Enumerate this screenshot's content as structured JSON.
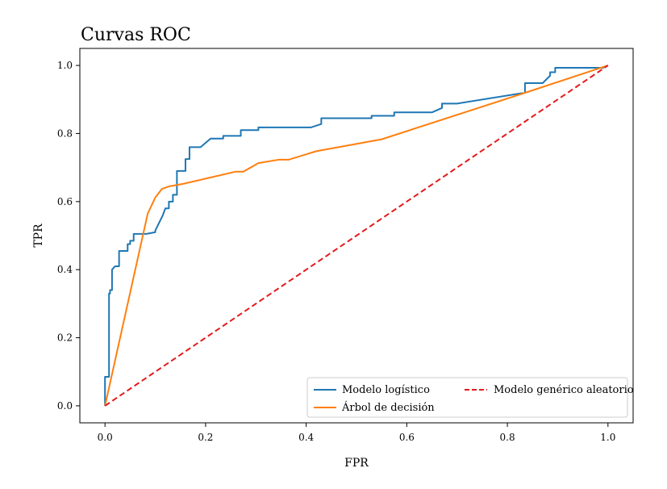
{
  "chart_data": {
    "type": "line",
    "title": "Curvas ROC",
    "xlabel": "FPR",
    "ylabel": "TPR",
    "xlim": [
      -0.05,
      1.05
    ],
    "ylim": [
      -0.05,
      1.05
    ],
    "xticks": [
      "0.0",
      "0.2",
      "0.4",
      "0.6",
      "0.8",
      "1.0"
    ],
    "yticks": [
      "0.0",
      "0.2",
      "0.4",
      "0.6",
      "0.8",
      "1.0"
    ],
    "grid": false,
    "legend_position": "bottom-right",
    "series": [
      {
        "name": "Modelo logístico",
        "color": "#1f77b4",
        "style": "solid",
        "x": [
          0,
          0,
          0.008,
          0.008,
          0.01,
          0.01,
          0.014,
          0.014,
          0.02,
          0.028,
          0.028,
          0.045,
          0.045,
          0.05,
          0.05,
          0.057,
          0.057,
          0.082,
          0.1,
          0.1,
          0.115,
          0.12,
          0.127,
          0.127,
          0.135,
          0.135,
          0.143,
          0.143,
          0.16,
          0.16,
          0.168,
          0.168,
          0.19,
          0.21,
          0.21,
          0.235,
          0.235,
          0.27,
          0.27,
          0.305,
          0.305,
          0.41,
          0.43,
          0.43,
          0.53,
          0.53,
          0.575,
          0.575,
          0.65,
          0.67,
          0.67,
          0.7,
          0.835,
          0.835,
          0.87,
          0.885,
          0.885,
          0.895,
          0.895,
          0.99,
          1.0
        ],
        "y": [
          0,
          0.085,
          0.085,
          0.33,
          0.33,
          0.34,
          0.34,
          0.4,
          0.41,
          0.41,
          0.455,
          0.455,
          0.475,
          0.475,
          0.485,
          0.485,
          0.505,
          0.505,
          0.51,
          0.515,
          0.56,
          0.58,
          0.58,
          0.6,
          0.6,
          0.62,
          0.62,
          0.69,
          0.69,
          0.725,
          0.725,
          0.76,
          0.76,
          0.785,
          0.785,
          0.785,
          0.793,
          0.793,
          0.81,
          0.81,
          0.818,
          0.818,
          0.828,
          0.845,
          0.845,
          0.852,
          0.852,
          0.862,
          0.862,
          0.875,
          0.888,
          0.888,
          0.92,
          0.948,
          0.948,
          0.97,
          0.98,
          0.98,
          0.993,
          0.993,
          1.0
        ]
      },
      {
        "name": "Árbol de decisión",
        "color": "#ff7f0e",
        "style": "solid",
        "x": [
          0,
          0.085,
          0.1,
          0.113,
          0.128,
          0.155,
          0.26,
          0.275,
          0.305,
          0.345,
          0.365,
          0.42,
          0.55,
          0.84,
          1.0
        ],
        "y": [
          0,
          0.565,
          0.612,
          0.637,
          0.645,
          0.652,
          0.688,
          0.688,
          0.713,
          0.723,
          0.723,
          0.748,
          0.783,
          0.922,
          1.0
        ]
      },
      {
        "name": "Modelo genérico aleatorio",
        "color": "#e31a1c",
        "style": "dashed",
        "x": [
          0,
          1
        ],
        "y": [
          0,
          1
        ]
      }
    ]
  }
}
